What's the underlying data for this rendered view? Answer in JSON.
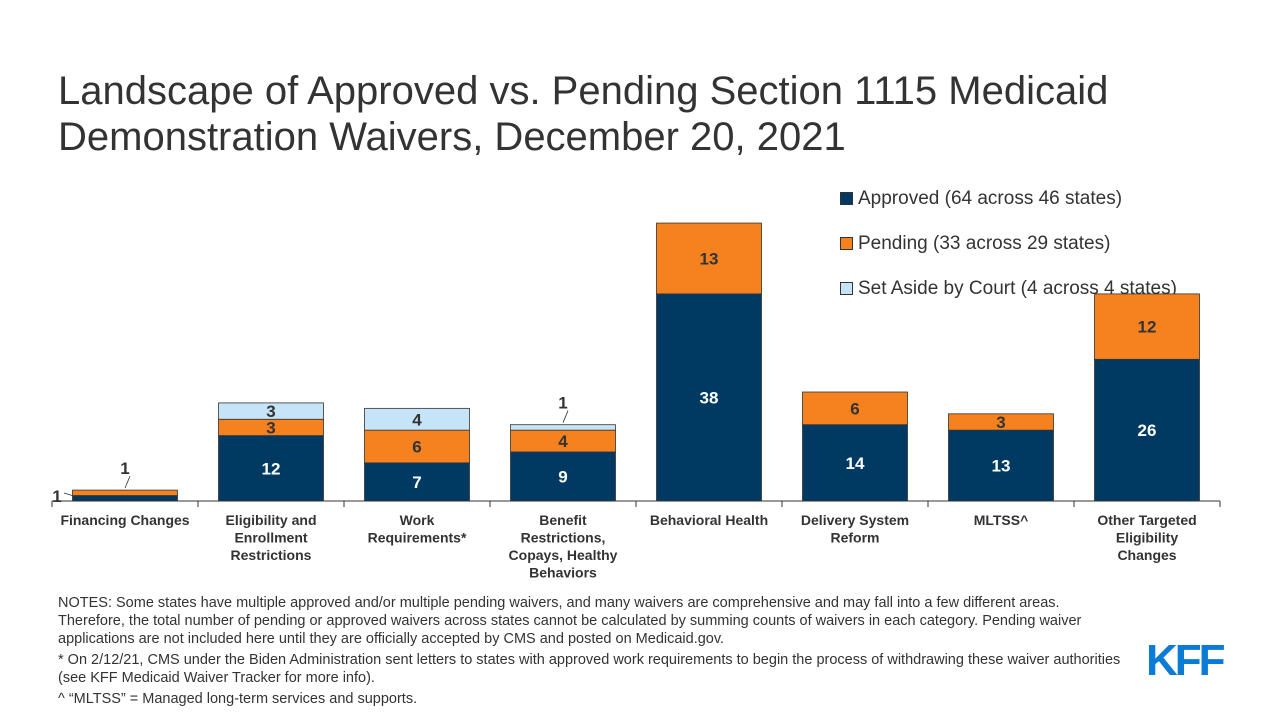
{
  "title": "Landscape of Approved vs. Pending Section 1115 Medicaid Demonstration Waivers, December 20, 2021",
  "chart_data": {
    "type": "bar",
    "stacked": true,
    "categories": [
      "Financing Changes",
      "Eligibility and Enrollment Restrictions",
      "Work Requirements*",
      "Benefit Restrictions, Copays, Healthy Behaviors",
      "Behavioral Health",
      "Delivery System Reform",
      "MLTSS^",
      "Other Targeted Eligibility Changes"
    ],
    "series": [
      {
        "name": "Approved (64 across 46 states)",
        "color": "#003a63",
        "values": [
          1,
          12,
          7,
          9,
          38,
          14,
          13,
          26
        ]
      },
      {
        "name": "Pending (33 across 29 states)",
        "color": "#f5821f",
        "values": [
          1,
          3,
          6,
          4,
          13,
          6,
          3,
          12
        ]
      },
      {
        "name": "Set Aside by Court (4 across 4 states)",
        "color": "#c5e4f7",
        "values": [
          0,
          3,
          4,
          1,
          0,
          0,
          0,
          0
        ]
      }
    ],
    "legend": "top-right",
    "grid": false,
    "yaxis_visible": false
  },
  "notes": [
    "NOTES: Some states have multiple approved and/or multiple pending waivers, and many waivers are comprehensive and may fall into a few different areas. Therefore, the total number of pending or approved waivers across states cannot be calculated by summing counts of waivers in each category. Pending waiver applications are not included here until they are officially accepted by CMS and posted on Medicaid.gov.",
    "* On 2/12/21, CMS under the Biden Administration sent letters to states with approved work requirements to begin the process of withdrawing these waiver authorities (see KFF Medicaid Waiver Tracker for more info).",
    "^ “MLTSS” = Managed long-term services and supports."
  ],
  "logo": "KFF"
}
